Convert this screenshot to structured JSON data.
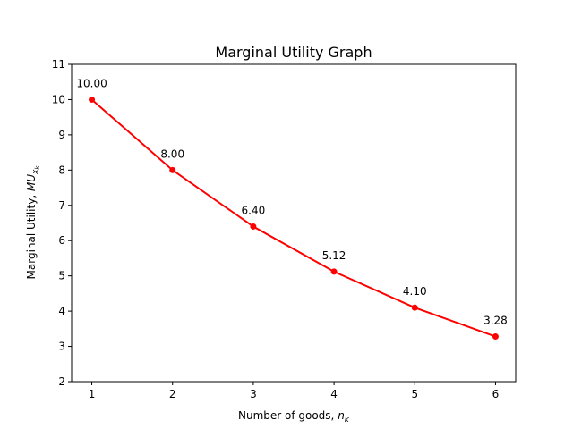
{
  "chart_data": {
    "type": "line",
    "title": "Marginal Utility Graph",
    "xlabel_text": "Number of goods, ",
    "xlabel_var": "n",
    "xlabel_sub": "k",
    "ylabel_text": "Marginal Utility, ",
    "ylabel_var": "MU",
    "ylabel_sub": "x",
    "ylabel_subsub": "k",
    "xlim": [
      0.75,
      6.25
    ],
    "ylim": [
      2,
      11
    ],
    "xticks": [
      1,
      2,
      3,
      4,
      5,
      6
    ],
    "yticks": [
      2,
      3,
      4,
      5,
      6,
      7,
      8,
      9,
      10,
      11
    ],
    "grid": false,
    "series": [
      {
        "color": "#ff0000",
        "marker": "circle",
        "x": [
          1,
          2,
          3,
          4,
          5,
          6
        ],
        "y": [
          10.0,
          8.0,
          6.4,
          5.12,
          4.1,
          3.28
        ],
        "labels": [
          "10.00",
          "8.00",
          "6.40",
          "5.12",
          "4.10",
          "3.28"
        ]
      }
    ]
  }
}
